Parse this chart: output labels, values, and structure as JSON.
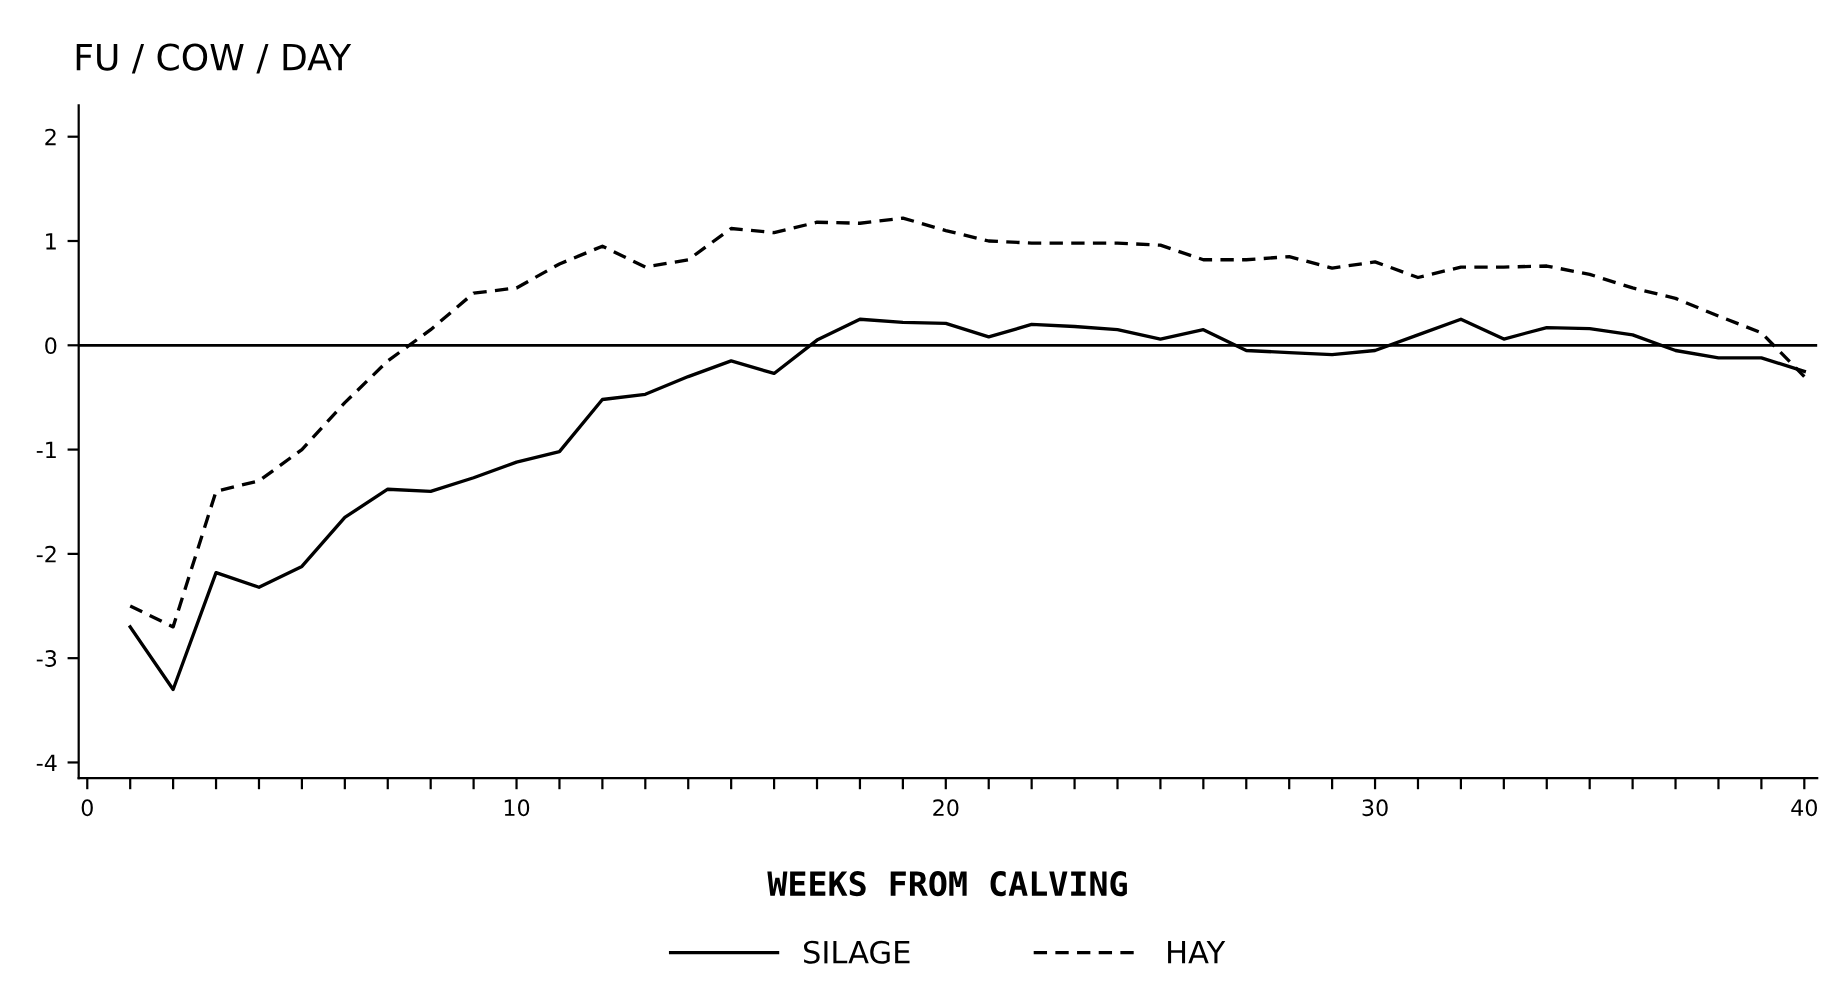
{
  "chart_data": {
    "type": "line",
    "title": "FU / COW / DAY",
    "xlabel": "WEEKS FROM CALVING",
    "x": [
      1,
      2,
      3,
      4,
      5,
      6,
      7,
      8,
      9,
      10,
      11,
      12,
      13,
      14,
      15,
      16,
      17,
      18,
      19,
      20,
      21,
      22,
      23,
      24,
      25,
      26,
      27,
      28,
      29,
      30,
      31,
      32,
      33,
      34,
      35,
      36,
      37,
      38,
      39,
      40
    ],
    "series": [
      {
        "name": "SILAGE",
        "color": "#000000",
        "line_style": "solid",
        "values": [
          -2.7,
          -3.3,
          -2.18,
          -2.32,
          -2.12,
          -1.65,
          -1.38,
          -1.4,
          -1.27,
          -1.12,
          -1.02,
          -0.52,
          -0.47,
          -0.3,
          -0.15,
          -0.27,
          0.05,
          0.25,
          0.22,
          0.21,
          0.08,
          0.2,
          0.18,
          0.15,
          0.06,
          0.15,
          -0.05,
          -0.07,
          -0.09,
          -0.05,
          0.1,
          0.25,
          0.06,
          0.17,
          0.16,
          0.1,
          -0.05,
          -0.12,
          -0.12,
          -0.25
        ]
      },
      {
        "name": "HAY",
        "color": "#000000",
        "line_style": "dashed",
        "values": [
          -2.5,
          -2.7,
          -1.4,
          -1.3,
          -1.0,
          -0.55,
          -0.15,
          0.15,
          0.5,
          0.55,
          0.78,
          0.95,
          0.75,
          0.82,
          1.12,
          1.08,
          1.18,
          1.17,
          1.22,
          1.1,
          1.0,
          0.98,
          0.98,
          0.98,
          0.96,
          0.82,
          0.82,
          0.85,
          0.74,
          0.8,
          0.65,
          0.75,
          0.75,
          0.76,
          0.68,
          0.55,
          0.45,
          0.28,
          0.12,
          -0.3
        ]
      }
    ],
    "xlim": [
      -0.2,
      40.3
    ],
    "ylim": [
      -4.15,
      2.3
    ],
    "xticks": [
      0,
      {
        "value": 1,
        "label": null
      },
      {
        "value": 2,
        "label": null
      },
      {
        "value": 3,
        "label": null
      },
      {
        "value": 4,
        "label": null
      },
      {
        "value": 5,
        "label": null
      },
      {
        "value": 6,
        "label": null
      },
      {
        "value": 7,
        "label": null
      },
      {
        "value": 8,
        "label": null
      },
      {
        "value": 9,
        "label": null
      },
      10,
      {
        "value": 11,
        "label": null
      },
      {
        "value": 12,
        "label": null
      },
      {
        "value": 13,
        "label": null
      },
      {
        "value": 14,
        "label": null
      },
      {
        "value": 15,
        "label": null
      },
      {
        "value": 16,
        "label": null
      },
      {
        "value": 17,
        "label": null
      },
      {
        "value": 18,
        "label": null
      },
      {
        "value": 19,
        "label": null
      },
      20,
      {
        "value": 21,
        "label": null
      },
      {
        "value": 22,
        "label": null
      },
      {
        "value": 23,
        "label": null
      },
      {
        "value": 24,
        "label": null
      },
      {
        "value": 25,
        "label": null
      },
      {
        "value": 26,
        "label": null
      },
      {
        "value": 27,
        "label": null
      },
      {
        "value": 28,
        "label": null
      },
      {
        "value": 29,
        "label": null
      },
      30,
      {
        "value": 31,
        "label": null
      },
      {
        "value": 32,
        "label": null
      },
      {
        "value": 33,
        "label": null
      },
      {
        "value": 34,
        "label": null
      },
      {
        "value": 35,
        "label": null
      },
      {
        "value": 36,
        "label": null
      },
      {
        "value": 37,
        "label": null
      },
      {
        "value": 38,
        "label": null
      },
      {
        "value": 39,
        "label": null
      },
      40
    ],
    "yticks": [
      -4,
      -3,
      -2,
      -1,
      0,
      1,
      2
    ],
    "ref_lines": [
      {
        "axis": "y",
        "value": 0,
        "color": "#000000",
        "line_style": "solid"
      }
    ],
    "grid": false,
    "legend": "bottom",
    "marker": "none"
  }
}
